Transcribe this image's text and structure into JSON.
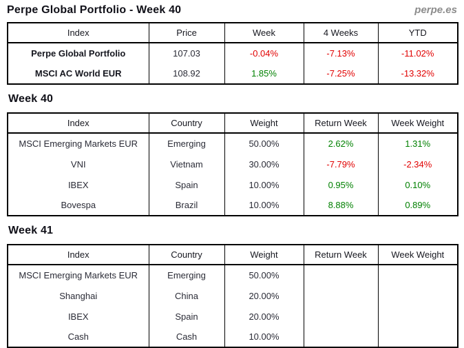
{
  "header": {
    "title": "Perpe Global Portfolio - Week 40",
    "brand": "perpe.es"
  },
  "colors": {
    "positive": "#008000",
    "negative": "#e10000"
  },
  "summary": {
    "headers": [
      "Index",
      "Price",
      "Week",
      "4 Weeks",
      "YTD"
    ],
    "rows": [
      [
        "Perpe Global Portfolio",
        "107.03",
        "-0.04%",
        "-7.13%",
        "-11.02%"
      ],
      [
        "MSCI AC World EUR",
        "108.92",
        "1.85%",
        "-7.25%",
        "-13.32%"
      ]
    ]
  },
  "week40": {
    "section_title": "Week 40",
    "headers": [
      "Index",
      "Country",
      "Weight",
      "Return Week",
      "Week Weight"
    ],
    "rows": [
      [
        "MSCI Emerging Markets EUR",
        "Emerging",
        "50.00%",
        "2.62%",
        "1.31%"
      ],
      [
        "VNI",
        "Vietnam",
        "30.00%",
        "-7.79%",
        "-2.34%"
      ],
      [
        "IBEX",
        "Spain",
        "10.00%",
        "0.95%",
        "0.10%"
      ],
      [
        "Bovespa",
        "Brazil",
        "10.00%",
        "8.88%",
        "0.89%"
      ]
    ]
  },
  "week41": {
    "section_title": "Week 41",
    "headers": [
      "Index",
      "Country",
      "Weight",
      "Return Week",
      "Week Weight"
    ],
    "rows": [
      [
        "MSCI Emerging Markets EUR",
        "Emerging",
        "50.00%",
        "",
        ""
      ],
      [
        "Shanghai",
        "China",
        "20.00%",
        "",
        ""
      ],
      [
        "IBEX",
        "Spain",
        "20.00%",
        "",
        ""
      ],
      [
        "Cash",
        "Cash",
        "10.00%",
        "",
        ""
      ]
    ]
  }
}
